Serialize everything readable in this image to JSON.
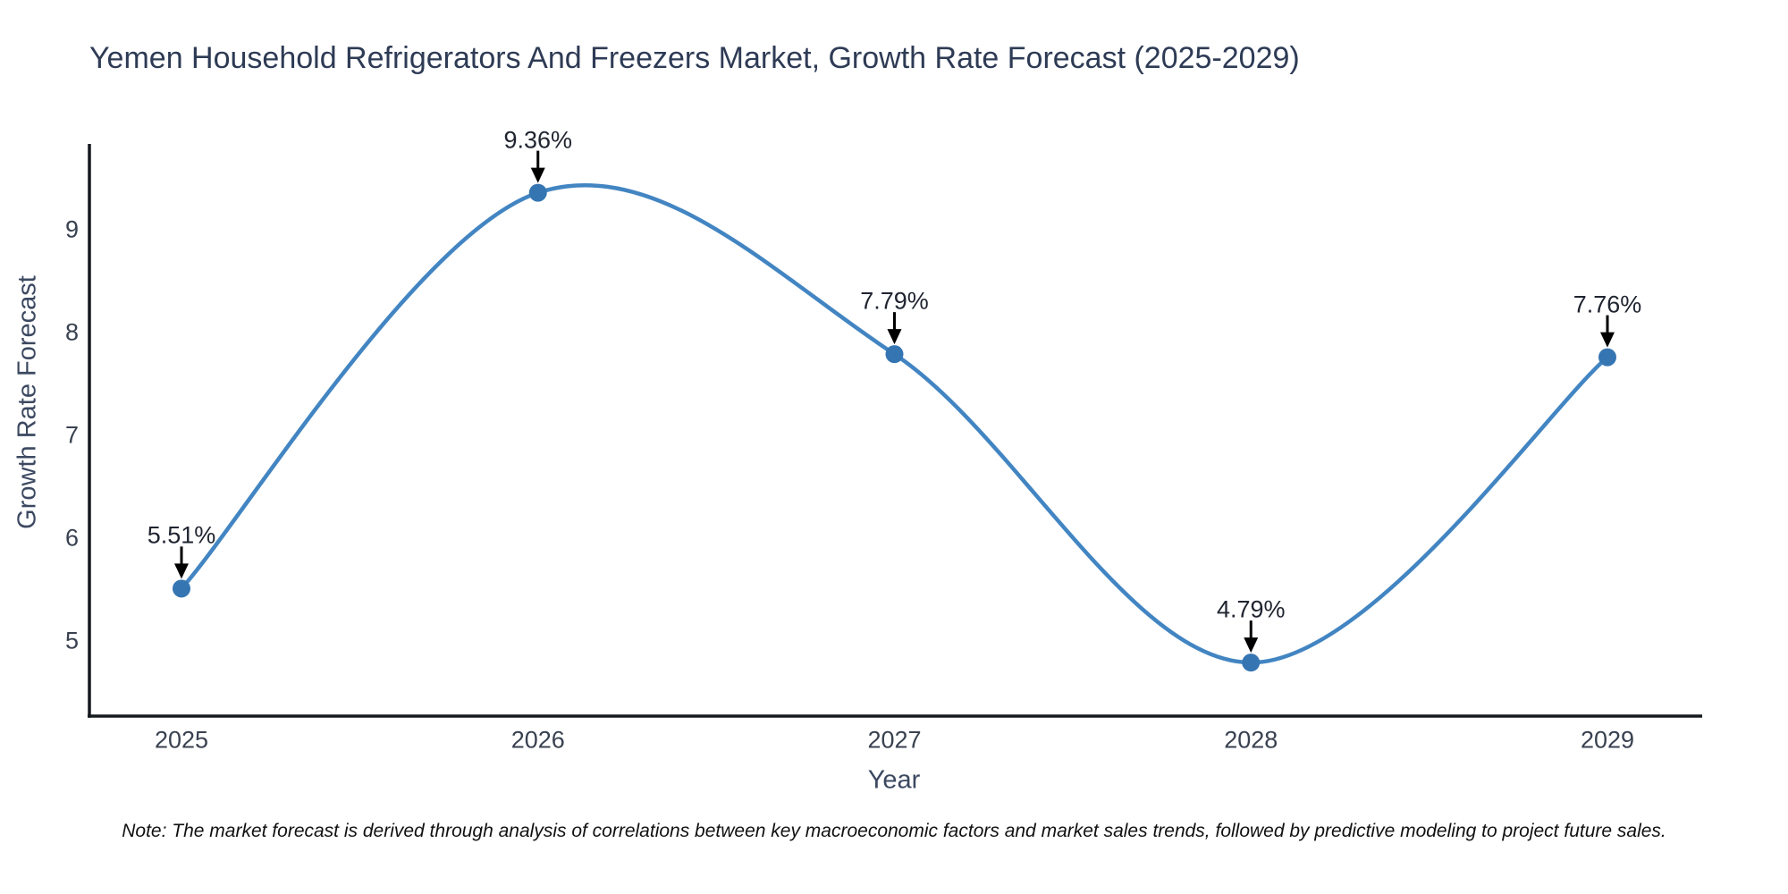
{
  "title": {
    "text": "Yemen Household Refrigerators And Freezers Market, Growth Rate Forecast (2025-2029)"
  },
  "note": {
    "text": "Note: The market forecast is derived through analysis of correlations between key macroeconomic factors and market sales trends, followed by predictive modeling to project future sales."
  },
  "chart_data": {
    "type": "line",
    "title": "Yemen Household Refrigerators And Freezers Market, Growth Rate Forecast (2025-2029)",
    "xlabel": "Year",
    "ylabel": "Growth Rate Forecast",
    "categories": [
      "2025",
      "2026",
      "2027",
      "2028",
      "2029"
    ],
    "series": [
      {
        "name": "Growth Rate Forecast",
        "values": [
          5.51,
          9.36,
          7.79,
          4.79,
          7.76
        ]
      }
    ],
    "point_labels": [
      "5.51%",
      "9.36%",
      "7.79%",
      "4.79%",
      "7.76%"
    ],
    "yticks": [
      "5",
      "6",
      "7",
      "8",
      "9"
    ],
    "ylim": [
      4.28,
      9.85
    ],
    "line_shape": "spline",
    "grid": false,
    "legend": false,
    "colors": {
      "line": "#4285c2",
      "marker": "#3575b2",
      "axis": "#15191e",
      "annotation_arrow": "#000000",
      "tick_text": "#394150",
      "axis_title_text": "#3b4860",
      "annotation_text": "#1f2430"
    }
  }
}
